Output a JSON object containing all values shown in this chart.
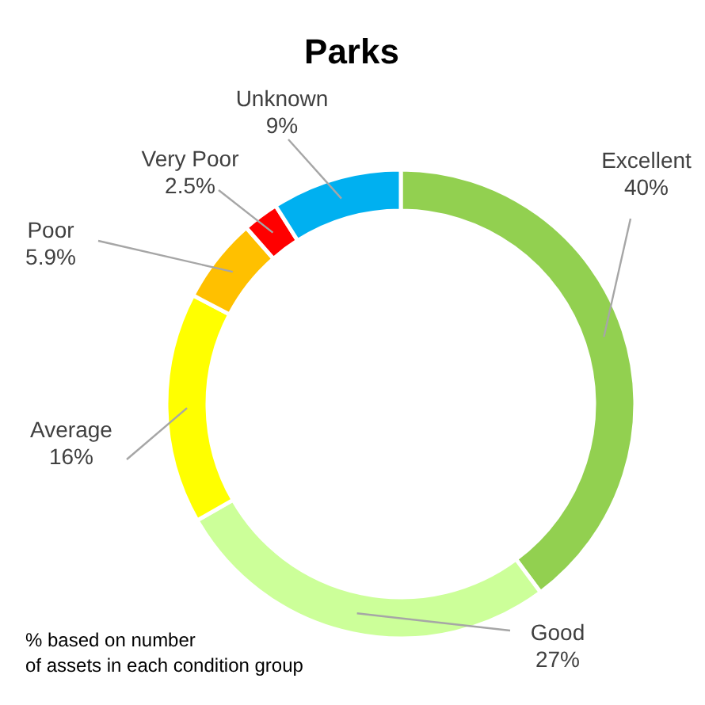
{
  "chart_data": {
    "type": "donut",
    "title": "Parks",
    "categories": [
      "Excellent",
      "Good",
      "Average",
      "Poor",
      "Very Poor",
      "Unknown"
    ],
    "values": [
      40,
      27,
      16,
      5.9,
      2.5,
      9
    ],
    "value_labels": [
      "40%",
      "27%",
      "16%",
      "5.9%",
      "2.5%",
      "9%"
    ],
    "colors": [
      "#92d050",
      "#ccff99",
      "#ffff00",
      "#ffc000",
      "#ff0000",
      "#00b0f0"
    ],
    "annotations": [
      "% based on number of assets in each condition group"
    ]
  }
}
